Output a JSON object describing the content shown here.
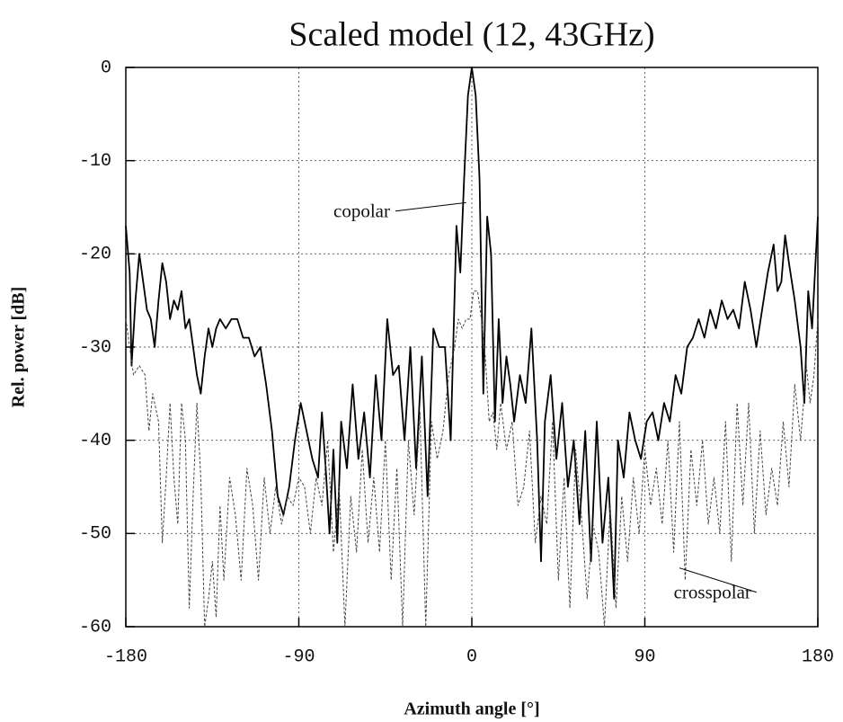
{
  "chart_data": {
    "type": "line",
    "title": "Scaled model (12, 43GHz)",
    "xlabel": "Azimuth angle [°]",
    "ylabel": "Rel. power [dB]",
    "xlim": [
      -180,
      180
    ],
    "ylim": [
      -60,
      0
    ],
    "xticks": [
      -180,
      -90,
      0,
      90,
      180
    ],
    "yticks": [
      0,
      -10,
      -20,
      -30,
      -40,
      -50,
      -60
    ],
    "grid": true,
    "series": [
      {
        "name": "copolar",
        "color": "#000000",
        "style": "solid",
        "label": {
          "x": -72,
          "y": -15.6
        },
        "pointer": {
          "x": -3,
          "y": -14.5
        },
        "x": [
          -180,
          -178,
          -177,
          -175,
          -173,
          -171,
          -169,
          -167,
          -165,
          -163,
          -161,
          -159,
          -157,
          -155,
          -153,
          -151,
          -149,
          -147,
          -145,
          -143,
          -141,
          -139,
          -137,
          -135,
          -133,
          -131,
          -128,
          -125,
          -122,
          -119,
          -116,
          -113,
          -110,
          -107,
          -104,
          -101,
          -98,
          -95,
          -92,
          -89,
          -86,
          -83,
          -80,
          -78,
          -76,
          -74,
          -72,
          -70,
          -68,
          -65,
          -62,
          -59,
          -56,
          -53,
          -50,
          -47,
          -44,
          -41,
          -38,
          -35,
          -32,
          -29,
          -26,
          -23,
          -20,
          -17,
          -14,
          -11,
          -8,
          -6,
          -4,
          -2,
          0,
          2,
          4,
          6,
          8,
          10,
          12,
          14,
          16,
          18,
          20,
          22,
          25,
          28,
          31,
          34,
          36,
          38,
          41,
          44,
          47,
          50,
          53,
          56,
          59,
          62,
          65,
          68,
          71,
          74,
          76,
          79,
          82,
          85,
          88,
          91,
          94,
          97,
          100,
          103,
          106,
          109,
          112,
          115,
          118,
          121,
          124,
          127,
          130,
          133,
          136,
          139,
          142,
          145,
          148,
          151,
          154,
          157,
          159,
          161,
          163,
          165,
          168,
          171,
          173,
          175,
          177,
          179,
          180
        ],
        "values": [
          -17,
          -22,
          -32,
          -25,
          -20,
          -23,
          -26,
          -27,
          -30,
          -25,
          -21,
          -23,
          -27,
          -25,
          -26,
          -24,
          -28,
          -27,
          -30,
          -33,
          -35,
          -31,
          -28,
          -30,
          -28,
          -27,
          -28,
          -27,
          -27,
          -29,
          -29,
          -31,
          -30,
          -34,
          -39,
          -46,
          -48,
          -45,
          -40,
          -36,
          -39,
          -42,
          -44,
          -37,
          -43,
          -50,
          -41,
          -51,
          -38,
          -43,
          -34,
          -42,
          -37,
          -44,
          -33,
          -40,
          -27,
          -33,
          -32,
          -40,
          -30,
          -43,
          -31,
          -46,
          -28,
          -30,
          -30,
          -40,
          -17,
          -22,
          -12,
          -3,
          0,
          -3,
          -12,
          -35,
          -16,
          -20,
          -38,
          -27,
          -36,
          -31,
          -34,
          -38,
          -33,
          -36,
          -28,
          -40,
          -53,
          -38,
          -33,
          -42,
          -36,
          -45,
          -40,
          -49,
          -39,
          -53,
          -38,
          -51,
          -44,
          -57,
          -40,
          -44,
          -37,
          -40,
          -42,
          -38,
          -37,
          -40,
          -36,
          -38,
          -33,
          -35,
          -30,
          -29,
          -27,
          -29,
          -26,
          -28,
          -25,
          -27,
          -26,
          -28,
          -23,
          -26,
          -30,
          -26,
          -22,
          -19,
          -24,
          -23,
          -18,
          -21,
          -25,
          -30,
          -36,
          -24,
          -28,
          -20,
          -16
        ]
      },
      {
        "name": "crosspolar",
        "color": "#444444",
        "style": "dashed",
        "label": {
          "x": 105,
          "y": -56.5
        },
        "pointer": {
          "x": 108,
          "y": -53.7
        },
        "x": [
          -180,
          -178,
          -176,
          -173,
          -170,
          -168,
          -166,
          -163,
          -161,
          -159,
          -157,
          -155,
          -153,
          -151,
          -149,
          -147,
          -145,
          -143,
          -141,
          -139,
          -137,
          -135,
          -133,
          -131,
          -129,
          -126,
          -123,
          -120,
          -117,
          -114,
          -111,
          -108,
          -105,
          -102,
          -99,
          -96,
          -93,
          -90,
          -87,
          -84,
          -81,
          -78,
          -75,
          -72,
          -69,
          -66,
          -63,
          -60,
          -57,
          -54,
          -51,
          -48,
          -45,
          -42,
          -39,
          -36,
          -33,
          -30,
          -27,
          -24,
          -21,
          -18,
          -15,
          -12,
          -9,
          -7,
          -5,
          -3,
          -1,
          1,
          3,
          5,
          7,
          9,
          11,
          13,
          15,
          18,
          21,
          24,
          27,
          30,
          33,
          36,
          39,
          42,
          45,
          48,
          51,
          54,
          57,
          60,
          63,
          66,
          69,
          72,
          75,
          78,
          81,
          84,
          87,
          90,
          93,
          96,
          99,
          102,
          105,
          108,
          111,
          114,
          117,
          120,
          123,
          126,
          129,
          132,
          135,
          138,
          141,
          144,
          147,
          150,
          153,
          156,
          159,
          162,
          165,
          168,
          171,
          174,
          176,
          178,
          180
        ],
        "values": [
          -27,
          -30,
          -33,
          -32,
          -33,
          -39,
          -35,
          -38,
          -51,
          -44,
          -36,
          -44,
          -49,
          -36,
          -40,
          -58,
          -46,
          -36,
          -44,
          -60,
          -57,
          -53,
          -59,
          -47,
          -55,
          -44,
          -48,
          -55,
          -43,
          -47,
          -55,
          -44,
          -50,
          -45,
          -49,
          -46,
          -47,
          -44,
          -45,
          -50,
          -44,
          -47,
          -40,
          -52,
          -45,
          -60,
          -46,
          -52,
          -41,
          -51,
          -44,
          -52,
          -40,
          -55,
          -43,
          -60,
          -40,
          -48,
          -37,
          -60,
          -38,
          -42,
          -39,
          -33,
          -30,
          -27,
          -28,
          -27,
          -27,
          -24,
          -24,
          -27,
          -31,
          -38,
          -37,
          -41,
          -36,
          -41,
          -38,
          -47,
          -45,
          -39,
          -51,
          -46,
          -49,
          -38,
          -55,
          -44,
          -58,
          -41,
          -48,
          -57,
          -49,
          -52,
          -60,
          -47,
          -58,
          -46,
          -53,
          -44,
          -50,
          -41,
          -47,
          -43,
          -49,
          -40,
          -52,
          -38,
          -55,
          -41,
          -47,
          -40,
          -49,
          -44,
          -50,
          -38,
          -53,
          -36,
          -47,
          -36,
          -50,
          -39,
          -48,
          -43,
          -47,
          -38,
          -45,
          -34,
          -40,
          -32,
          -36,
          -33,
          -27
        ]
      }
    ]
  }
}
